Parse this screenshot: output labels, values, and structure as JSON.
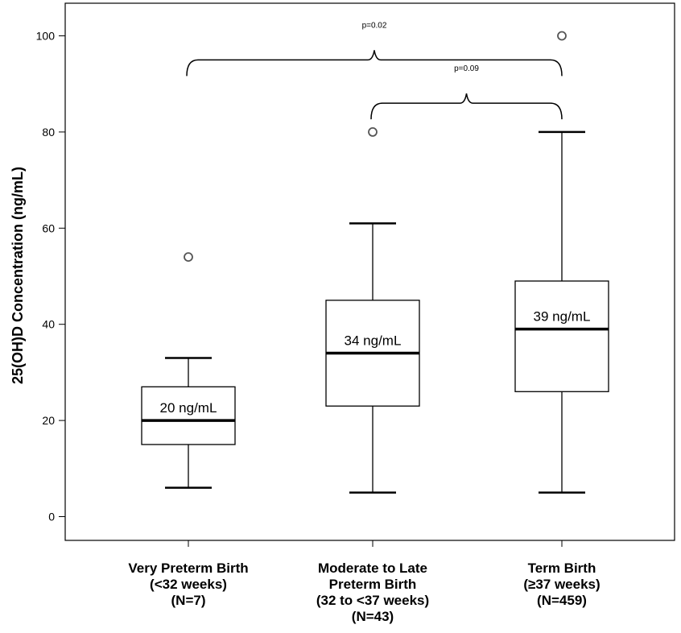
{
  "chart_data": {
    "type": "box",
    "ylabel": "25(OH)D Concentration (ng/mL)",
    "xlabel": "",
    "ylim": [
      -5,
      107
    ],
    "yticks": [
      0,
      20,
      40,
      60,
      80,
      100
    ],
    "grid": false,
    "categories": [
      [
        "Very Preterm Birth",
        "(<32 weeks)",
        "(N=7)"
      ],
      [
        "Moderate to Late",
        "Preterm Birth",
        "(32 to <37 weeks)",
        "(N=43)"
      ],
      [
        "Term Birth",
        "(≥37 weeks)",
        "(N=459)"
      ]
    ],
    "boxes": [
      {
        "whisker_low": 6,
        "q1": 15,
        "median": 20,
        "q3": 27,
        "whisker_high": 33,
        "outliers": [
          54
        ],
        "median_label": "20 ng/mL"
      },
      {
        "whisker_low": 5,
        "q1": 23,
        "median": 34,
        "q3": 45,
        "whisker_high": 61,
        "outliers": [
          80
        ],
        "median_label": "34 ng/mL"
      },
      {
        "whisker_low": 5,
        "q1": 26,
        "median": 39,
        "q3": 49,
        "whisker_high": 80,
        "outliers": [
          100
        ],
        "median_label": "39 ng/mL"
      }
    ],
    "comparisons": [
      {
        "from": 0,
        "to": 2,
        "label": "p=0.02",
        "y": 95
      },
      {
        "from": 1,
        "to": 2,
        "label": "p=0.09",
        "y": 86
      }
    ]
  }
}
